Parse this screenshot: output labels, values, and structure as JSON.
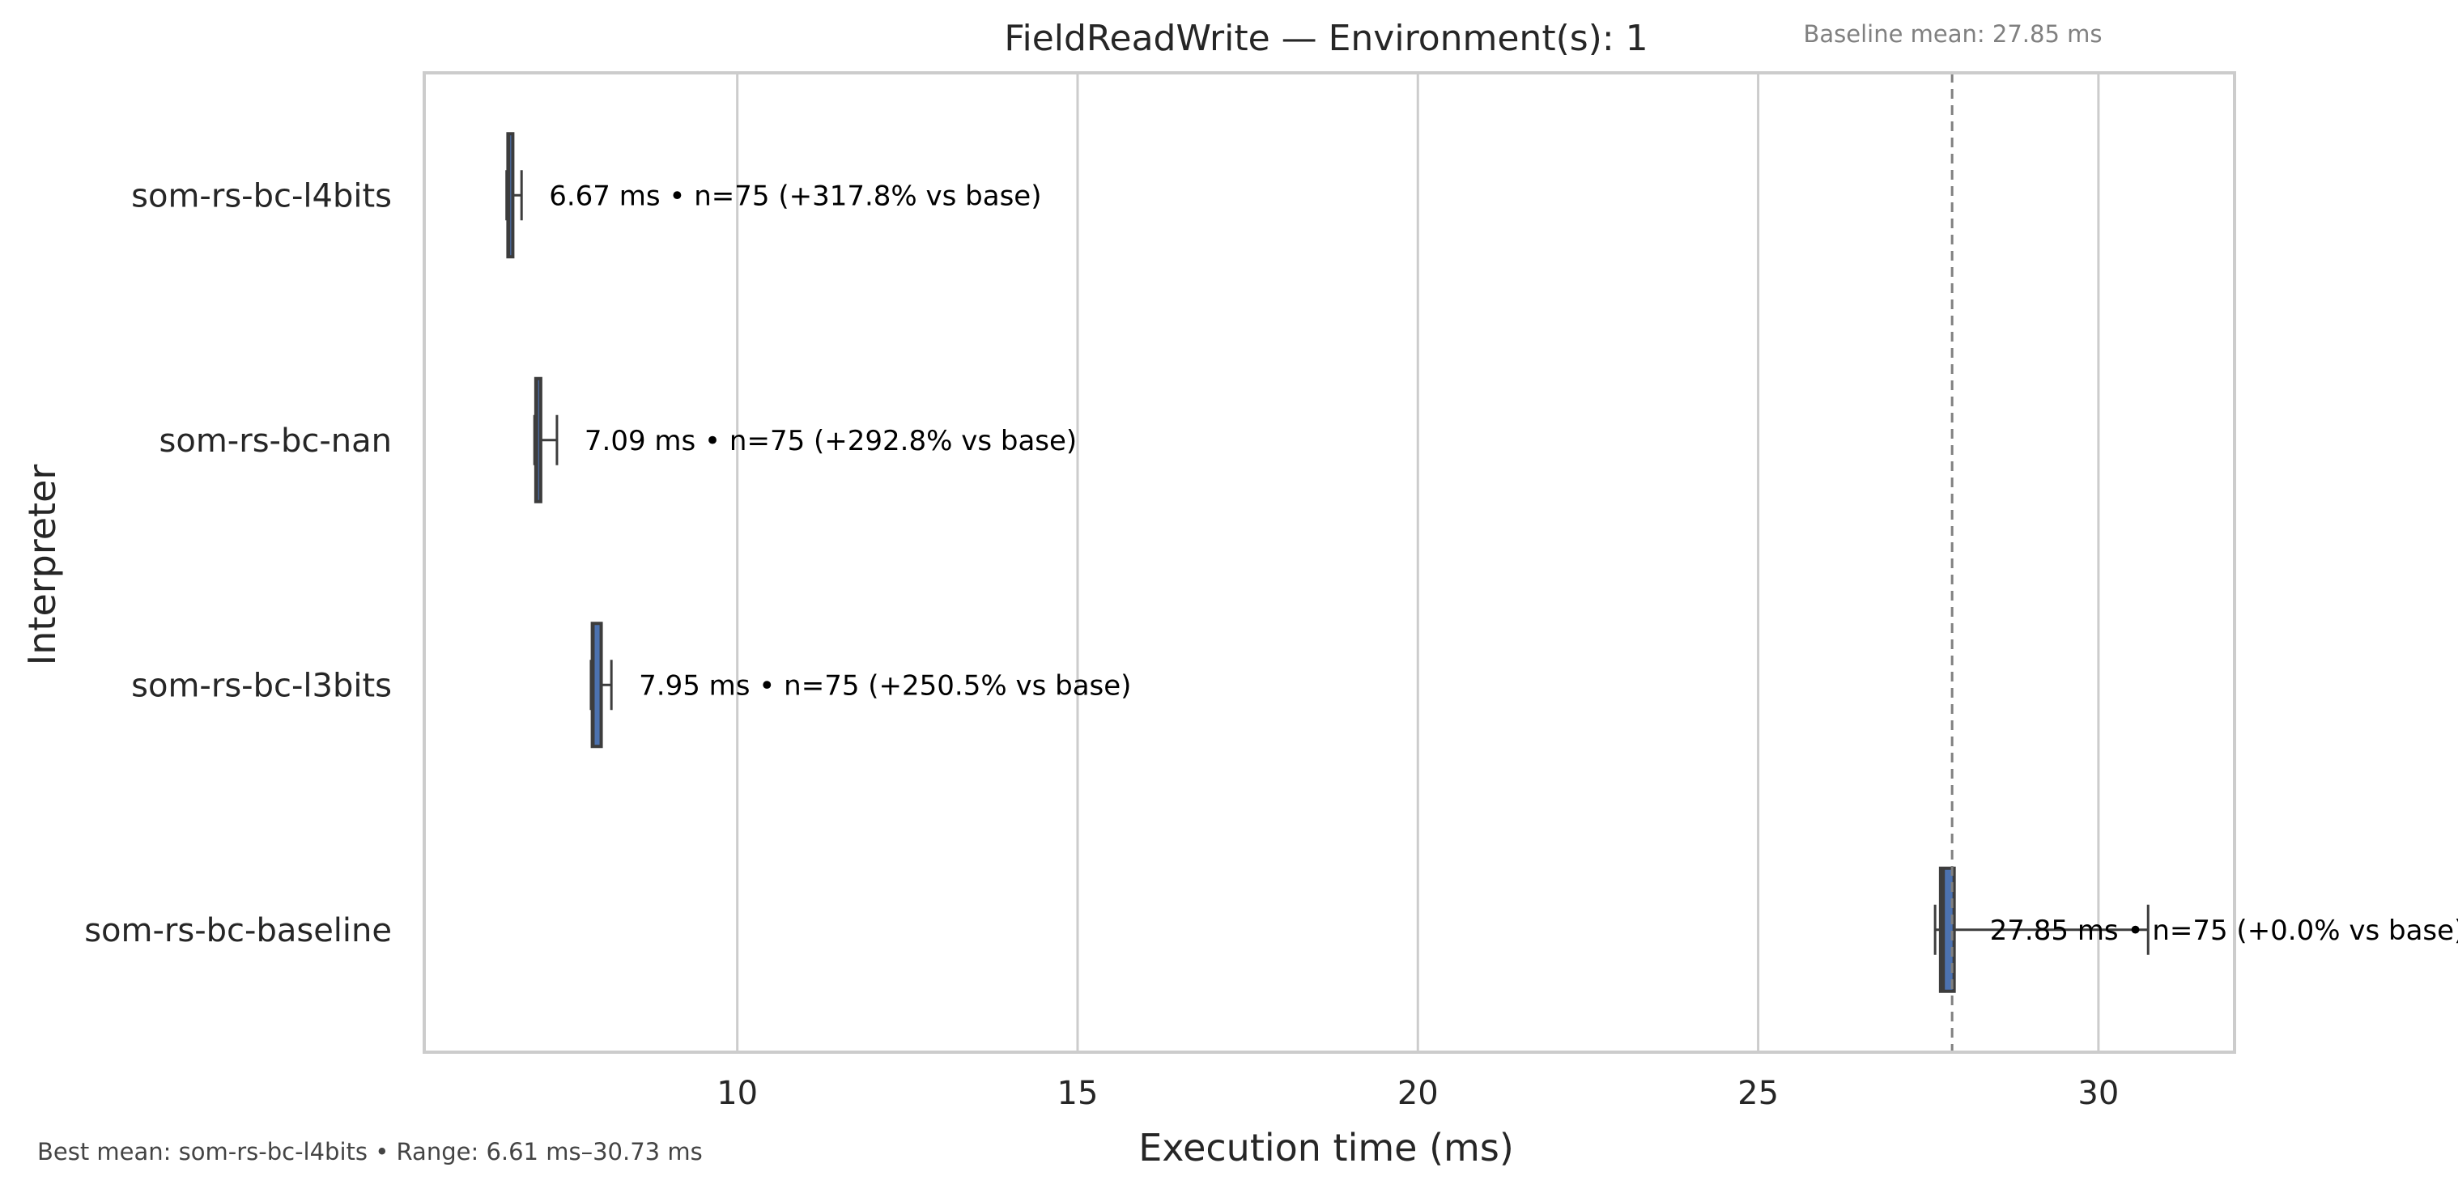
{
  "chart_data": {
    "type": "box",
    "orientation": "horizontal",
    "title": "FieldReadWrite — Environment(s): 1",
    "xlabel": "Execution time (ms)",
    "ylabel": "Interpreter",
    "xlim": [
      5.4,
      32
    ],
    "xticks": [
      10,
      15,
      20,
      25,
      30
    ],
    "grid": true,
    "categories": [
      "som-rs-bc-l4bits",
      "som-rs-bc-nan",
      "som-rs-bc-l3bits",
      "som-rs-bc-baseline"
    ],
    "boxes": [
      {
        "name": "som-rs-bc-l4bits",
        "whisker_low": 6.61,
        "q1": 6.63,
        "median": 6.64,
        "q3": 6.67,
        "whisker_high": 6.83,
        "mean": 6.67,
        "n": 75,
        "label": "6.67 ms • n=75 (+317.8% vs base)"
      },
      {
        "name": "som-rs-bc-nan",
        "whisker_low": 7.02,
        "q1": 7.04,
        "median": 7.05,
        "q3": 7.1,
        "whisker_high": 7.35,
        "mean": 7.09,
        "n": 75,
        "label": "7.09 ms • n=75 (+292.8% vs base)"
      },
      {
        "name": "som-rs-bc-l3bits",
        "whisker_low": 7.85,
        "q1": 7.87,
        "median": 7.88,
        "q3": 8.0,
        "whisker_high": 8.15,
        "mean": 7.95,
        "n": 75,
        "label": "7.95 ms • n=75 (+250.5% vs base)"
      },
      {
        "name": "som-rs-bc-baseline",
        "whisker_low": 27.6,
        "q1": 27.68,
        "median": 27.72,
        "q3": 27.88,
        "whisker_high": 30.73,
        "mean": 27.85,
        "n": 75,
        "label": "27.85 ms • n=75 (+0.0% vs base)"
      }
    ],
    "baseline": {
      "value": 27.85,
      "label": "Baseline mean: 27.85 ms"
    },
    "colors": {
      "box_fill": "#4c72b0",
      "box_edge": "#3d3d3d",
      "grid": "#cccccc",
      "baseline_line": "#808080",
      "frame": "#cccccc"
    }
  },
  "footer": "Best mean: som-rs-bc-l4bits • Range: 6.61 ms–30.73 ms"
}
